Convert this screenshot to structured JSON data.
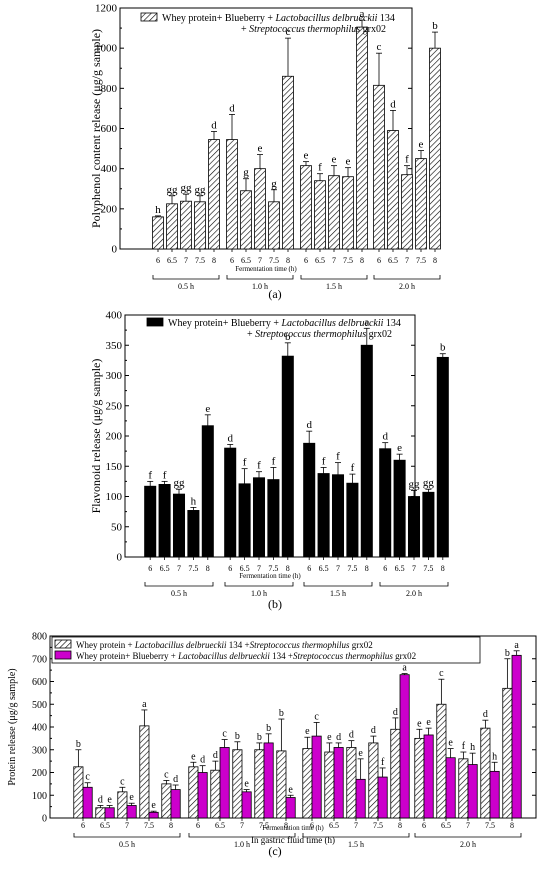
{
  "chart_data": [
    {
      "panel": "(a)",
      "type": "bar",
      "ylabel": "Polyphenol content release (μg/g sample)",
      "xlabel": "Fermentation time (h)",
      "ylim": [
        0,
        1200
      ],
      "yticks": [
        0,
        200,
        400,
        600,
        800,
        1000,
        1200
      ],
      "groups": [
        {
          "label": "0.5 h",
          "categories": [
            "6",
            "6.5",
            "7",
            "7.5",
            "8"
          ]
        },
        {
          "label": "1.0 h",
          "categories": [
            "6",
            "6.5",
            "7",
            "7.5",
            "8"
          ]
        },
        {
          "label": "1.5 h",
          "categories": [
            "6",
            "6.5",
            "7",
            "7.5",
            "8"
          ]
        },
        {
          "label": "2.0 h",
          "categories": [
            "6",
            "6.5",
            "7",
            "7.5",
            "8"
          ]
        }
      ],
      "legend": {
        "parts": [
          {
            "t": "Whey protein+ Blueberry + ",
            "i": false
          },
          {
            "t": "Lactobacillus delbrueckii",
            "i": true
          },
          {
            "t": " 134",
            "i": false
          }
        ],
        "parts2": [
          {
            "t": "+ ",
            "i": false
          },
          {
            "t": "Streptococcus thermophilus",
            "i": true
          },
          {
            "t": " grx02",
            "i": false
          }
        ]
      },
      "series": [
        {
          "name": "Whey protein+ Blueberry + Lactobacillus delbrueckii 134 + Streptococcus thermophilus grx02",
          "fill": "hatch",
          "values": [
            160,
            225,
            238,
            235,
            545,
            545,
            290,
            400,
            235,
            860,
            415,
            340,
            365,
            360,
            1105,
            815,
            590,
            370,
            450,
            1000
          ],
          "errors": [
            5,
            40,
            35,
            30,
            40,
            125,
            60,
            70,
            60,
            190,
            20,
            35,
            50,
            45,
            35,
            160,
            100,
            45,
            40,
            80
          ],
          "letters": [
            "h",
            "gg",
            "gg",
            "gg",
            "d",
            "d",
            "g",
            "e",
            "g",
            "c",
            "e",
            "f",
            "e",
            "e",
            "a",
            "c",
            "d",
            "f",
            "e",
            "b"
          ]
        }
      ],
      "caption": "(a)"
    },
    {
      "panel": "(b)",
      "type": "bar",
      "ylabel": "Flavonoid release  (μg/g sample)",
      "xlabel": "Fermentation time (h)",
      "ylim": [
        0,
        400
      ],
      "yticks": [
        0,
        50,
        100,
        150,
        200,
        250,
        300,
        350,
        400
      ],
      "groups": [
        {
          "label": "0.5 h",
          "categories": [
            "6",
            "6.5",
            "7",
            "7.5",
            "8"
          ]
        },
        {
          "label": "1.0 h",
          "categories": [
            "6",
            "6.5",
            "7",
            "7.5",
            "8"
          ]
        },
        {
          "label": "1.5 h",
          "categories": [
            "6",
            "6.5",
            "7",
            "7.5",
            "8"
          ]
        },
        {
          "label": "2.0 h",
          "categories": [
            "6",
            "6.5",
            "7",
            "7.5",
            "8"
          ]
        }
      ],
      "legend": {
        "parts": [
          {
            "t": "Whey protein+ Blueberry + ",
            "i": false
          },
          {
            "t": "Lactobacillus delbrueckii",
            "i": true
          },
          {
            "t": " 134",
            "i": false
          }
        ],
        "parts2": [
          {
            "t": "+ ",
            "i": false
          },
          {
            "t": "Streptococcus thermophilus",
            "i": true
          },
          {
            "t": " grx02",
            "i": false
          }
        ]
      },
      "series": [
        {
          "name": "Whey protein+ Blueberry + Lactobacillus delbrueckii 134 + Streptococcus thermophilus grx02",
          "fill": "solid",
          "values": [
            117,
            120,
            104,
            77,
            217,
            180,
            121,
            131,
            128,
            332,
            188,
            138,
            136,
            122,
            350,
            179,
            160,
            100,
            107,
            330
          ],
          "errors": [
            8,
            5,
            8,
            5,
            18,
            6,
            25,
            10,
            20,
            22,
            20,
            10,
            20,
            15,
            28,
            10,
            10,
            10,
            5,
            6
          ],
          "letters": [
            "f",
            "f",
            "gg",
            "h",
            "e",
            "d",
            "f",
            "f",
            "f",
            "b",
            "d",
            "f",
            "f",
            "f",
            "a",
            "d",
            "e",
            "gg",
            "gg",
            "b"
          ]
        }
      ],
      "caption": "(b)"
    },
    {
      "panel": "(c)",
      "type": "bar",
      "ylabel": "Protein release (μg/g sample)",
      "xlabel": "Fermentation time (h)",
      "xlabel2": "In gastric fluid time (h)",
      "ylim": [
        0,
        800
      ],
      "yticks": [
        0,
        100,
        200,
        300,
        400,
        500,
        600,
        700,
        800
      ],
      "groups": [
        {
          "label": "0.5 h",
          "categories": [
            "6",
            "6.5",
            "7",
            "7.5",
            "8"
          ]
        },
        {
          "label": "1.0 h",
          "categories": [
            "6",
            "6.5",
            "7",
            "7.5",
            "8"
          ]
        },
        {
          "label": "1.5 h",
          "categories": [
            "6",
            "6.5",
            "7",
            "7.5",
            "8"
          ]
        },
        {
          "label": "2.0 h",
          "categories": [
            "6",
            "6.5",
            "7",
            "7.5",
            "8"
          ]
        }
      ],
      "legend_entries": [
        {
          "fill": "hatch",
          "parts": [
            {
              "t": "Whey protein + ",
              "i": false
            },
            {
              "t": "Lactobacillus delbrueckii",
              "i": true
            },
            {
              "t": " 134 +",
              "i": false
            },
            {
              "t": "Streptococcus thermophilus",
              "i": true
            },
            {
              "t": " grx02",
              "i": false
            }
          ]
        },
        {
          "fill": "magenta",
          "parts": [
            {
              "t": "Whey protein+ Blueberry + ",
              "i": false
            },
            {
              "t": "Lactobacillus delbrueckii",
              "i": true
            },
            {
              "t": " 134 +",
              "i": false
            },
            {
              "t": "Streptococcus thermophilus",
              "i": true
            },
            {
              "t": " grx02",
              "i": false
            }
          ]
        }
      ],
      "series": [
        {
          "name": "Whey protein + Lactobacillus delbrueckii 134 +Streptococcus thermophilus grx02",
          "fill": "hatch",
          "values": [
            225,
            45,
            115,
            405,
            150,
            225,
            210,
            300,
            300,
            295,
            305,
            290,
            310,
            330,
            390,
            350,
            500,
            260,
            395,
            570
          ],
          "errors": [
            75,
            10,
            20,
            70,
            15,
            20,
            40,
            35,
            30,
            140,
            50,
            40,
            30,
            30,
            50,
            40,
            110,
            30,
            35,
            130
          ],
          "letters": [
            "b",
            "d",
            "c",
            "a",
            "c",
            "e",
            "d",
            "b",
            "b",
            "b",
            "e",
            "e",
            "d",
            "d",
            "d",
            "e",
            "c",
            "f",
            "d",
            "b"
          ]
        },
        {
          "name": "Whey protein+ Blueberry + Lactobacillus delbrueckii 134 +Streptococcus thermophilus grx02",
          "fill": "magenta",
          "values": [
            135,
            45,
            55,
            25,
            125,
            200,
            310,
            115,
            330,
            90,
            360,
            310,
            170,
            180,
            630,
            365,
            265,
            235,
            205,
            715
          ],
          "errors": [
            20,
            10,
            10,
            5,
            20,
            30,
            35,
            10,
            40,
            10,
            60,
            20,
            90,
            40,
            5,
            30,
            40,
            50,
            40,
            20
          ],
          "letters": [
            "c",
            "e",
            "e",
            "e",
            "d",
            "d",
            "c",
            "e",
            "b",
            "e",
            "c",
            "d",
            "e",
            "f",
            "a",
            "e",
            "e",
            "h",
            "h",
            "a"
          ]
        }
      ],
      "caption": "(c)"
    }
  ]
}
